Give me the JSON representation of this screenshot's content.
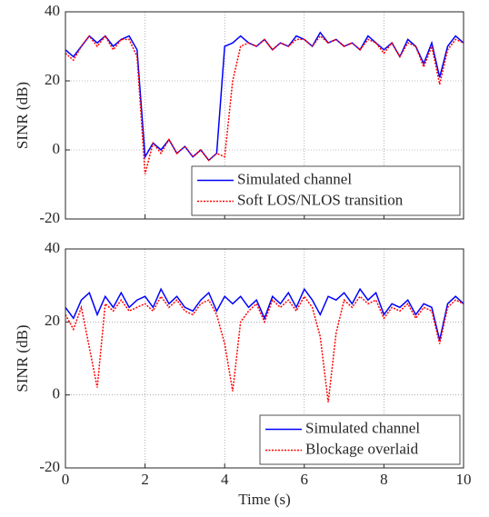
{
  "chart_data": [
    {
      "type": "line",
      "ylabel": "SINR (dB)",
      "xlim": [
        0,
        10
      ],
      "xticks": [
        0,
        2,
        4,
        6,
        8,
        10
      ],
      "ylim": [
        -20,
        40
      ],
      "yticks": [
        -20,
        0,
        20,
        40
      ],
      "grid": true,
      "legend": "lower right",
      "show_xtick_labels": false,
      "x": [
        0,
        0.2,
        0.4,
        0.6,
        0.8,
        1,
        1.2,
        1.4,
        1.6,
        1.8,
        2,
        2.2,
        2.4,
        2.6,
        2.8,
        3,
        3.2,
        3.4,
        3.6,
        3.8,
        4,
        4.2,
        4.4,
        4.6,
        4.8,
        5,
        5.2,
        5.4,
        5.6,
        5.8,
        6,
        6.2,
        6.4,
        6.6,
        6.8,
        7,
        7.2,
        7.4,
        7.6,
        7.8,
        8,
        8.2,
        8.4,
        8.6,
        8.8,
        9,
        9.2,
        9.4,
        9.6,
        9.8,
        10
      ],
      "series": [
        {
          "name": "Simulated channel",
          "color": "#0000ff",
          "dash": false,
          "values": [
            29,
            27,
            30,
            33,
            31,
            33,
            30,
            32,
            33,
            29,
            -2,
            2,
            0,
            3,
            -1,
            1,
            -2,
            0,
            -3,
            -1,
            30,
            31,
            33,
            31,
            30,
            32,
            29,
            31,
            30,
            33,
            32,
            30,
            34,
            31,
            32,
            30,
            31,
            29,
            33,
            31,
            29,
            31,
            27,
            32,
            30,
            25,
            31,
            21,
            30,
            33,
            31
          ]
        },
        {
          "name": "Soft LOS/NLOS transition",
          "color": "#ff0000",
          "dash": true,
          "values": [
            28,
            26,
            30,
            33,
            30,
            33,
            29,
            32,
            32,
            27,
            -7,
            2,
            -1,
            3,
            -1,
            1,
            -2,
            0,
            -3,
            -1,
            -2,
            20,
            30,
            31,
            30,
            32,
            29,
            31,
            30,
            32,
            32,
            30,
            33,
            31,
            32,
            30,
            31,
            29,
            32,
            31,
            28,
            31,
            27,
            31,
            30,
            24,
            30,
            19,
            29,
            32,
            31
          ]
        }
      ]
    },
    {
      "type": "line",
      "xlabel": "Time (s)",
      "ylabel": "SINR (dB)",
      "xlim": [
        0,
        10
      ],
      "xticks": [
        0,
        2,
        4,
        6,
        8,
        10
      ],
      "ylim": [
        -20,
        40
      ],
      "yticks": [
        -20,
        0,
        20,
        40
      ],
      "grid": true,
      "legend": "lower right",
      "show_xtick_labels": true,
      "x": [
        0,
        0.2,
        0.4,
        0.6,
        0.8,
        1,
        1.2,
        1.4,
        1.6,
        1.8,
        2,
        2.2,
        2.4,
        2.6,
        2.8,
        3,
        3.2,
        3.4,
        3.6,
        3.8,
        4,
        4.2,
        4.4,
        4.6,
        4.8,
        5,
        5.2,
        5.4,
        5.6,
        5.8,
        6,
        6.2,
        6.4,
        6.6,
        6.8,
        7,
        7.2,
        7.4,
        7.6,
        7.8,
        8,
        8.2,
        8.4,
        8.6,
        8.8,
        9,
        9.2,
        9.4,
        9.6,
        9.8,
        10
      ],
      "series": [
        {
          "name": "Simulated channel",
          "color": "#0000ff",
          "dash": false,
          "values": [
            24,
            21,
            26,
            28,
            22,
            27,
            24,
            28,
            24,
            26,
            27,
            24,
            29,
            25,
            27,
            24,
            23,
            26,
            28,
            23,
            27,
            25,
            27,
            24,
            26,
            21,
            27,
            25,
            28,
            24,
            29,
            26,
            22,
            27,
            26,
            28,
            25,
            29,
            26,
            28,
            22,
            25,
            24,
            26,
            22,
            25,
            24,
            15,
            25,
            27,
            25
          ]
        },
        {
          "name": "Blockage overlaid",
          "color": "#ff0000",
          "dash": true,
          "values": [
            22,
            18,
            24,
            13,
            2,
            25,
            23,
            26,
            23,
            24,
            25,
            23,
            27,
            24,
            26,
            23,
            22,
            25,
            26,
            22,
            14,
            1,
            20,
            23,
            25,
            20,
            26,
            24,
            26,
            23,
            27,
            24,
            16,
            -2,
            17,
            26,
            24,
            27,
            25,
            26,
            21,
            24,
            23,
            25,
            21,
            24,
            23,
            14,
            24,
            26,
            25
          ]
        }
      ]
    }
  ]
}
